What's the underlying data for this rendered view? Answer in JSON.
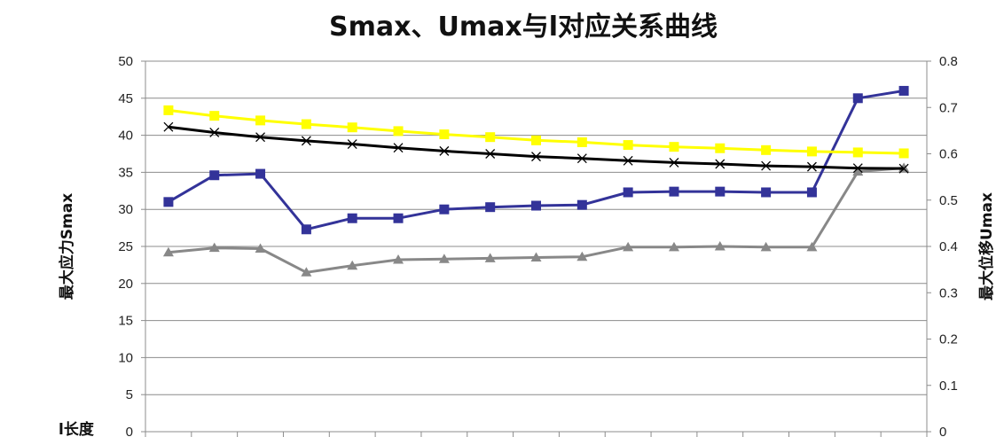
{
  "chart_data": {
    "type": "line",
    "title": "Smax、Umax与l对应关系曲线",
    "xlabel": "l长度",
    "ylabel": "最大应力Smax",
    "y2label": "最大位移Umax",
    "ylim": [
      0,
      50
    ],
    "yticks": [
      0,
      5,
      10,
      15,
      20,
      25,
      30,
      35,
      40,
      45,
      50
    ],
    "y2lim": [
      0,
      0.8
    ],
    "y2ticks": [
      "0",
      "0.1",
      "0.2",
      "0.3",
      "0.4",
      "0.5",
      "0.6",
      "0.7",
      "0.8"
    ],
    "grid": true,
    "x": [
      1,
      2,
      3,
      4,
      5,
      6,
      7,
      8,
      9,
      10,
      11,
      12,
      13,
      14,
      15,
      16,
      17
    ],
    "series": [
      {
        "axis": "left",
        "color": "#333399",
        "marker": "square",
        "values": [
          31.0,
          34.6,
          34.8,
          27.3,
          28.8,
          28.8,
          30.0,
          30.3,
          30.5,
          30.6,
          32.3,
          32.4,
          32.4,
          32.3,
          32.3,
          45.0,
          46.0
        ]
      },
      {
        "axis": "left",
        "color": "#888888",
        "marker": "triangle",
        "values": [
          24.2,
          24.8,
          24.7,
          21.5,
          22.4,
          23.2,
          23.3,
          23.4,
          23.5,
          23.6,
          24.9,
          24.9,
          25.0,
          24.9,
          24.9,
          35.1,
          35.6
        ]
      },
      {
        "axis": "right",
        "color": "#ffff00",
        "marker": "square",
        "values": [
          0.694,
          0.682,
          0.672,
          0.664,
          0.657,
          0.649,
          0.642,
          0.636,
          0.629,
          0.625,
          0.619,
          0.615,
          0.612,
          0.608,
          0.605,
          0.603,
          0.601
        ]
      },
      {
        "axis": "right",
        "color": "#000000",
        "marker": "x",
        "values": [
          0.658,
          0.646,
          0.636,
          0.628,
          0.621,
          0.613,
          0.606,
          0.6,
          0.594,
          0.59,
          0.585,
          0.581,
          0.578,
          0.574,
          0.572,
          0.569,
          0.568
        ]
      }
    ]
  }
}
